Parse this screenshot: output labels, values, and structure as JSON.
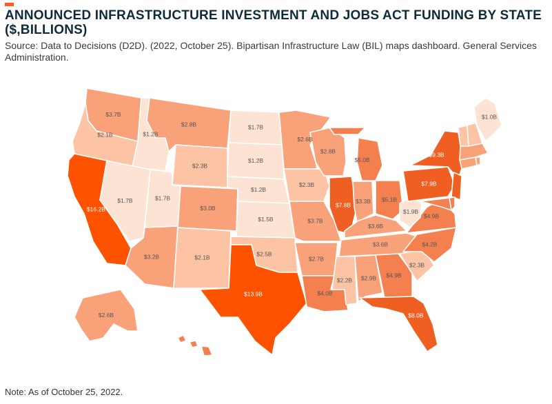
{
  "header": {
    "title": "ANNOUNCED INFRASTRUCTURE INVESTMENT AND JOBS ACT FUNDING BY STATE ($,BILLIONS)",
    "source": "Source: Data to Decisions (D2D). (2022, October 25). Bipartisan Infrastructure Law (BIL) maps dashboard. General Services Administration."
  },
  "footer": {
    "note": "Note: As of October 25, 2022."
  },
  "colors": {
    "accent": "#ff5a1f",
    "title": "#0d2b3a",
    "scale": [
      "#fde3d4",
      "#fcc3a4",
      "#f9a27a",
      "#f47f4f",
      "#f05f22",
      "#ff5200"
    ]
  },
  "chart_data": {
    "type": "choropleth",
    "unit": "$ billions",
    "states": [
      {
        "state": "WA",
        "label": "$3.7B",
        "value": 3.7
      },
      {
        "state": "OR",
        "label": "$2.1B",
        "value": 2.1
      },
      {
        "state": "CA",
        "label": "$16.2B",
        "value": 16.2
      },
      {
        "state": "ID",
        "label": "$1.2B",
        "value": 1.2
      },
      {
        "state": "NV",
        "label": "$1.7B",
        "value": 1.7
      },
      {
        "state": "MT",
        "label": "$2.8B",
        "value": 2.8
      },
      {
        "state": "WY",
        "label": "$2.3B",
        "value": 2.3
      },
      {
        "state": "UT",
        "label": "$1.7B",
        "value": 1.7
      },
      {
        "state": "AZ",
        "label": "$3.2B",
        "value": 3.2
      },
      {
        "state": "CO",
        "label": "$3.0B",
        "value": 3.0
      },
      {
        "state": "NM",
        "label": "$2.1B",
        "value": 2.1
      },
      {
        "state": "ND",
        "label": "$1.7B",
        "value": 1.7
      },
      {
        "state": "SD",
        "label": "$1.2B",
        "value": 1.2
      },
      {
        "state": "NE",
        "label": "$1.2B",
        "value": 1.2
      },
      {
        "state": "KS",
        "label": "$1.5B",
        "value": 1.5
      },
      {
        "state": "OK",
        "label": "$2.5B",
        "value": 2.5
      },
      {
        "state": "TX",
        "label": "$13.9B",
        "value": 13.9
      },
      {
        "state": "MN",
        "label": "$2.6B",
        "value": 2.6
      },
      {
        "state": "IA",
        "label": "$2.3B",
        "value": 2.3
      },
      {
        "state": "MO",
        "label": "$3.7B",
        "value": 3.7
      },
      {
        "state": "AR",
        "label": "$2.7B",
        "value": 2.7
      },
      {
        "state": "LA",
        "label": "$4.0B",
        "value": 4.0
      },
      {
        "state": "WI",
        "label": "$2.8B",
        "value": 2.8
      },
      {
        "state": "IL",
        "label": "$7.8B",
        "value": 7.8
      },
      {
        "state": "MI",
        "label": "$5.0B",
        "value": 5.0
      },
      {
        "state": "IN",
        "label": "$3.3B",
        "value": 3.3
      },
      {
        "state": "OH",
        "label": "$5.1B",
        "value": 5.1
      },
      {
        "state": "KY",
        "label": "$3.6B",
        "value": 3.6
      },
      {
        "state": "TN",
        "label": "$3.6B",
        "value": 3.6
      },
      {
        "state": "MS",
        "label": "$2.2B",
        "value": 2.2
      },
      {
        "state": "AL",
        "label": "$2.9B",
        "value": 2.9
      },
      {
        "state": "GA",
        "label": "$4.9B",
        "value": 4.9
      },
      {
        "state": "FL",
        "label": "$8.0B",
        "value": 8.0
      },
      {
        "state": "SC",
        "label": "$2.3B",
        "value": 2.3
      },
      {
        "state": "NC",
        "label": "$4.2B",
        "value": 4.2
      },
      {
        "state": "VA",
        "label": "$4.9B",
        "value": 4.9
      },
      {
        "state": "WV",
        "label": "$1.9B",
        "value": 1.9
      },
      {
        "state": "PA",
        "label": "$7.9B",
        "value": 7.9
      },
      {
        "state": "NY",
        "label": "$9.3B",
        "value": 9.3
      },
      {
        "state": "ME",
        "label": "$1.0B",
        "value": 1.0
      },
      {
        "state": "AK",
        "label": "$2.6B",
        "value": 2.6
      }
    ]
  }
}
